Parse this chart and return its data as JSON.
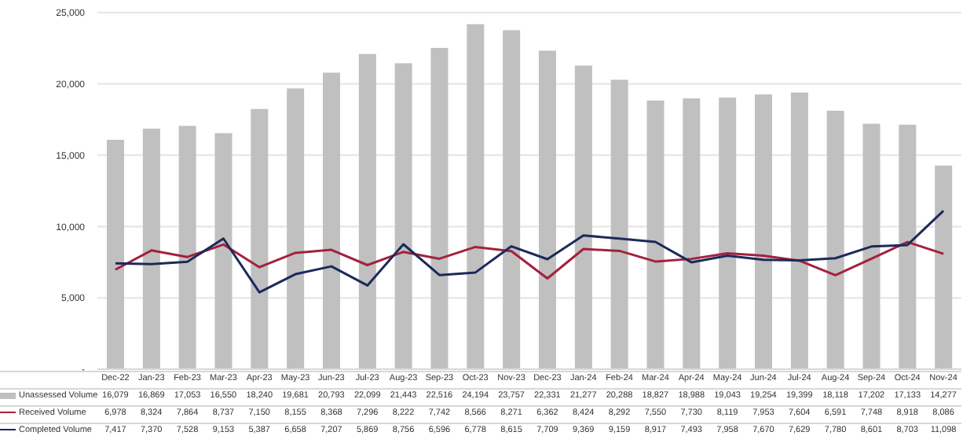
{
  "chart_data": {
    "type": "bar",
    "categories": [
      "Dec-22",
      "Jan-23",
      "Feb-23",
      "Mar-23",
      "Apr-23",
      "May-23",
      "Jun-23",
      "Jul-23",
      "Aug-23",
      "Sep-23",
      "Oct-23",
      "Nov-23",
      "Dec-23",
      "Jan-24",
      "Feb-24",
      "Mar-24",
      "Apr-24",
      "May-24",
      "Jun-24",
      "Jul-24",
      "Aug-24",
      "Sep-24",
      "Oct-24",
      "Nov-24"
    ],
    "series": [
      {
        "name": "Unassessed Volume",
        "color": "#c0c0c0",
        "values": [
          16079,
          16869,
          17053,
          16550,
          18240,
          19681,
          20793,
          22099,
          21443,
          22516,
          24194,
          23757,
          22331,
          21277,
          20288,
          18827,
          18988,
          19043,
          19254,
          19399,
          18118,
          17202,
          17133,
          14277
        ],
        "value_labels": [
          "16,079",
          "16,869",
          "17,053",
          "16,550",
          "18,240",
          "19,681",
          "20,793",
          "22,099",
          "21,443",
          "22,516",
          "24,194",
          "23,757",
          "22,331",
          "21,277",
          "20,288",
          "18,827",
          "18,988",
          "19,043",
          "19,254",
          "19,399",
          "18,118",
          "17,202",
          "17,133",
          "14,277"
        ]
      },
      {
        "name": "Received Volume",
        "type": "line",
        "color": "#a3213f",
        "values": [
          6978,
          8324,
          7864,
          8737,
          7150,
          8155,
          8368,
          7296,
          8222,
          7742,
          8566,
          8271,
          6362,
          8424,
          8292,
          7550,
          7730,
          8119,
          7953,
          7604,
          6591,
          7748,
          8918,
          8086
        ],
        "value_labels": [
          "6,978",
          "8,324",
          "7,864",
          "8,737",
          "7,150",
          "8,155",
          "8,368",
          "7,296",
          "8,222",
          "7,742",
          "8,566",
          "8,271",
          "6,362",
          "8,424",
          "8,292",
          "7,550",
          "7,730",
          "8,119",
          "7,953",
          "7,604",
          "6,591",
          "7,748",
          "8,918",
          "8,086"
        ]
      },
      {
        "name": "Completed Volume",
        "type": "line",
        "color": "#1c2a5a",
        "values": [
          7417,
          7370,
          7528,
          9153,
          5387,
          6658,
          7207,
          5869,
          8756,
          6596,
          6778,
          8615,
          7709,
          9369,
          9159,
          8917,
          7493,
          7958,
          7670,
          7629,
          7780,
          8601,
          8703,
          11098
        ],
        "value_labels": [
          "7,417",
          "7,370",
          "7,528",
          "9,153",
          "5,387",
          "6,658",
          "7,207",
          "5,869",
          "8,756",
          "6,596",
          "6,778",
          "8,615",
          "7,709",
          "9,369",
          "9,159",
          "8,917",
          "7,493",
          "7,958",
          "7,670",
          "7,629",
          "7,780",
          "8,601",
          "8,703",
          "11,098"
        ]
      }
    ],
    "ylim": [
      0,
      25000
    ],
    "yticks": [
      {
        "value": 0,
        "label": "-"
      },
      {
        "value": 5000,
        "label": "5,000"
      },
      {
        "value": 10000,
        "label": "10,000"
      },
      {
        "value": 15000,
        "label": "15,000"
      },
      {
        "value": 20000,
        "label": "20,000"
      },
      {
        "value": 25000,
        "label": "25,000"
      }
    ],
    "grid": "y",
    "legend": "bottom",
    "marker": "none",
    "line_style": "solid"
  }
}
